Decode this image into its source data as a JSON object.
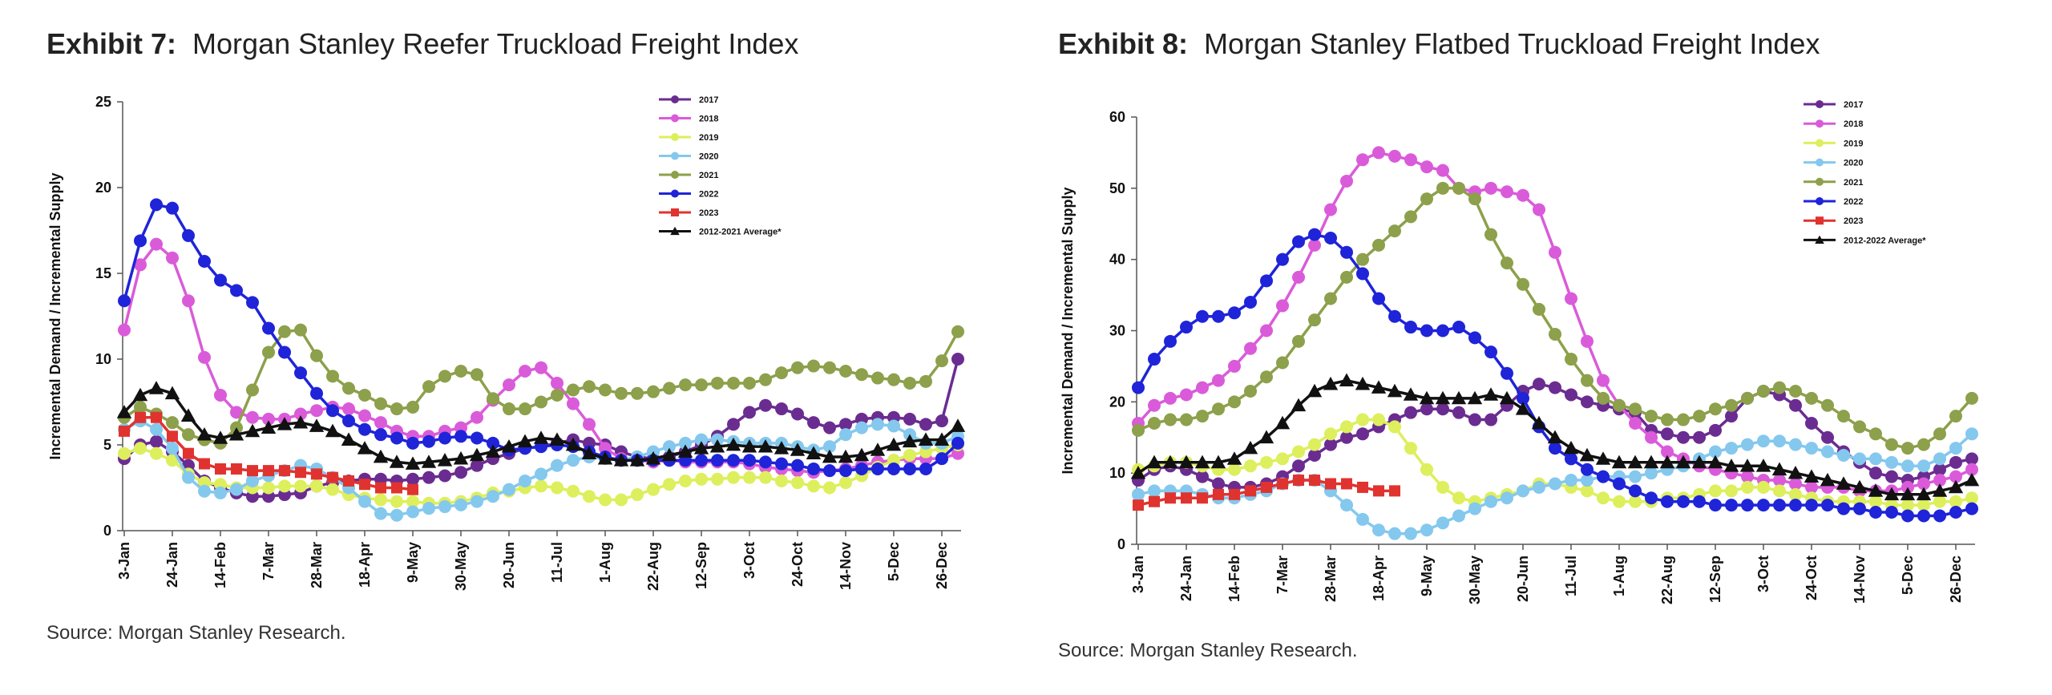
{
  "exhibits": [
    {
      "label": "Exhibit 7:",
      "title": "Morgan Stanley Reefer Truckload Freight Index",
      "source": "Source: Morgan Stanley Research."
    },
    {
      "label": "Exhibit 8:",
      "title": "Morgan Stanley Flatbed Truckload Freight Index",
      "source": "Source: Morgan Stanley Research."
    }
  ],
  "chart_data": [
    {
      "type": "line",
      "title": "Morgan Stanley Reefer Truckload Freight Index",
      "ylabel": "Incremental Demand / Incremental Supply",
      "xlabel": "",
      "ylim": [
        0,
        25
      ],
      "yticks": [
        0,
        5,
        10,
        15,
        20,
        25
      ],
      "xticks": [
        "3-Jan",
        "24-Jan",
        "14-Feb",
        "7-Mar",
        "28-Mar",
        "18-Apr",
        "9-May",
        "30-May",
        "20-Jun",
        "11-Jul",
        "1-Aug",
        "22-Aug",
        "12-Sep",
        "3-Oct",
        "24-Oct",
        "14-Nov",
        "5-Dec",
        "26-Dec"
      ],
      "grid": false,
      "legend_position": "top-right",
      "series": [
        {
          "name": "2017",
          "color": "#6B2C91",
          "marker": "circle",
          "values": [
            4.2,
            5.0,
            5.2,
            4.6,
            3.8,
            2.9,
            2.5,
            2.2,
            2.0,
            2.0,
            2.1,
            2.2,
            2.6,
            2.8,
            2.9,
            3.0,
            3.0,
            2.9,
            3.0,
            3.1,
            3.2,
            3.4,
            3.8,
            4.2,
            4.5,
            4.8,
            4.9,
            5.1,
            5.3,
            5.1,
            5.0,
            4.6,
            4.3,
            4.2,
            4.3,
            4.6,
            5.0,
            5.5,
            6.2,
            6.9,
            7.3,
            7.1,
            6.8,
            6.3,
            6.0,
            6.2,
            6.5,
            6.6,
            6.6,
            6.5,
            6.2,
            6.4,
            10.0
          ]
        },
        {
          "name": "2018",
          "color": "#DA5BD9",
          "marker": "circle",
          "values": [
            11.7,
            15.5,
            16.7,
            15.9,
            13.4,
            10.1,
            7.9,
            6.9,
            6.6,
            6.5,
            6.5,
            6.8,
            7.0,
            7.2,
            7.1,
            6.7,
            6.3,
            5.8,
            5.5,
            5.5,
            5.8,
            6.0,
            6.6,
            7.6,
            8.5,
            9.3,
            9.5,
            8.6,
            7.4,
            6.2,
            4.8,
            4.2,
            4.1,
            4.0,
            4.1,
            4.0,
            4.0,
            4.0,
            4.0,
            3.9,
            3.7,
            3.6,
            3.5,
            3.4,
            3.5,
            3.6,
            3.8,
            4.0,
            4.1,
            4.2,
            4.2,
            4.2,
            4.5
          ]
        },
        {
          "name": "2019",
          "color": "#DDEF5C",
          "marker": "circle",
          "values": [
            4.5,
            4.8,
            4.5,
            4.1,
            3.3,
            2.8,
            2.7,
            2.5,
            2.5,
            2.5,
            2.6,
            2.6,
            2.6,
            2.4,
            2.1,
            1.9,
            1.8,
            1.7,
            1.7,
            1.6,
            1.6,
            1.7,
            1.9,
            2.2,
            2.3,
            2.5,
            2.6,
            2.5,
            2.3,
            2.0,
            1.8,
            1.8,
            2.1,
            2.4,
            2.7,
            2.9,
            3.0,
            3.0,
            3.1,
            3.1,
            3.1,
            2.9,
            2.8,
            2.6,
            2.5,
            2.8,
            3.2,
            3.7,
            4.1,
            4.4,
            4.6,
            4.8,
            5.0
          ]
        },
        {
          "name": "2020",
          "color": "#84C8EE",
          "marker": "circle",
          "values": [
            5.9,
            6.4,
            5.9,
            4.8,
            3.1,
            2.3,
            2.2,
            2.4,
            2.9,
            3.2,
            3.5,
            3.8,
            3.6,
            3.1,
            2.5,
            1.7,
            1.0,
            0.9,
            1.1,
            1.3,
            1.4,
            1.5,
            1.7,
            2.0,
            2.4,
            2.9,
            3.3,
            3.8,
            4.1,
            4.3,
            4.2,
            4.1,
            4.3,
            4.6,
            4.9,
            5.1,
            5.3,
            5.3,
            5.2,
            5.1,
            5.1,
            5.1,
            4.9,
            4.7,
            4.9,
            5.6,
            6.0,
            6.2,
            6.1,
            5.6,
            5.1,
            5.1,
            5.5
          ]
        },
        {
          "name": "2021",
          "color": "#8DA04B",
          "marker": "circle",
          "values": [
            6.6,
            7.2,
            6.8,
            6.3,
            5.6,
            5.3,
            5.1,
            6.0,
            8.2,
            10.4,
            11.6,
            11.7,
            10.2,
            9.0,
            8.3,
            7.9,
            7.4,
            7.1,
            7.2,
            8.4,
            9.0,
            9.3,
            9.1,
            7.7,
            7.1,
            7.1,
            7.5,
            7.9,
            8.2,
            8.4,
            8.2,
            8.0,
            8.0,
            8.1,
            8.3,
            8.5,
            8.5,
            8.6,
            8.6,
            8.6,
            8.8,
            9.2,
            9.5,
            9.6,
            9.5,
            9.3,
            9.1,
            8.9,
            8.8,
            8.6,
            8.7,
            9.9,
            11.6
          ]
        },
        {
          "name": "2022",
          "color": "#1F24D8",
          "marker": "circle",
          "values": [
            13.4,
            16.9,
            19.0,
            18.8,
            17.2,
            15.7,
            14.6,
            14.0,
            13.3,
            11.8,
            10.4,
            9.2,
            8.0,
            7.0,
            6.4,
            5.9,
            5.6,
            5.4,
            5.1,
            5.2,
            5.4,
            5.5,
            5.4,
            5.1,
            4.7,
            4.8,
            4.9,
            5.0,
            4.9,
            4.6,
            4.3,
            4.1,
            4.1,
            4.1,
            4.1,
            4.1,
            4.1,
            4.1,
            4.1,
            4.1,
            4.0,
            3.9,
            3.8,
            3.6,
            3.5,
            3.5,
            3.6,
            3.6,
            3.6,
            3.6,
            3.6,
            4.2,
            5.1
          ]
        },
        {
          "name": "2023",
          "color": "#E0332F",
          "marker": "square",
          "values": [
            5.8,
            6.6,
            6.6,
            5.5,
            4.5,
            3.9,
            3.6,
            3.6,
            3.5,
            3.5,
            3.5,
            3.4,
            3.3,
            3.1,
            2.9,
            2.7,
            2.5,
            2.5,
            2.4
          ]
        },
        {
          "name": "2012-2021 Average*",
          "color": "#111111",
          "marker": "triangle",
          "values": [
            6.9,
            7.9,
            8.3,
            8.0,
            6.7,
            5.6,
            5.4,
            5.6,
            5.8,
            6.0,
            6.2,
            6.3,
            6.1,
            5.8,
            5.3,
            4.8,
            4.3,
            4.0,
            3.9,
            4.0,
            4.1,
            4.2,
            4.4,
            4.6,
            4.9,
            5.2,
            5.4,
            5.3,
            5.0,
            4.5,
            4.2,
            4.1,
            4.1,
            4.2,
            4.4,
            4.6,
            4.8,
            4.9,
            5.0,
            4.9,
            4.9,
            4.8,
            4.7,
            4.5,
            4.3,
            4.3,
            4.4,
            4.7,
            5.0,
            5.2,
            5.3,
            5.3,
            6.1
          ]
        }
      ]
    },
    {
      "type": "line",
      "title": "Morgan Stanley Flatbed Truckload Freight Index",
      "ylabel": "Incremental Demand / Incremental Supply",
      "xlabel": "",
      "ylim": [
        0,
        60
      ],
      "yticks": [
        0,
        10,
        20,
        30,
        40,
        50,
        60
      ],
      "xticks": [
        "3-Jan",
        "24-Jan",
        "14-Feb",
        "7-Mar",
        "28-Mar",
        "18-Apr",
        "9-May",
        "30-May",
        "20-Jun",
        "11-Jul",
        "1-Aug",
        "22-Aug",
        "12-Sep",
        "3-Oct",
        "24-Oct",
        "14-Nov",
        "5-Dec",
        "26-Dec"
      ],
      "grid": false,
      "legend_position": "top-right",
      "series": [
        {
          "name": "2017",
          "color": "#6B2C91",
          "marker": "circle",
          "values": [
            9.0,
            10.5,
            11.0,
            10.5,
            9.5,
            8.5,
            8.0,
            8.0,
            8.5,
            9.5,
            11.0,
            12.5,
            14.0,
            15.0,
            15.5,
            16.5,
            17.5,
            18.5,
            19.0,
            19.0,
            18.5,
            17.5,
            17.5,
            19.5,
            21.5,
            22.5,
            22.0,
            21.0,
            20.0,
            19.5,
            19.0,
            18.5,
            16.0,
            15.5,
            15.0,
            15.0,
            16.0,
            18.0,
            20.5,
            21.5,
            21.0,
            19.5,
            17.0,
            15.0,
            13.0,
            11.5,
            10.0,
            9.5,
            9.0,
            9.5,
            10.5,
            11.5,
            12.0
          ]
        },
        {
          "name": "2018",
          "color": "#DA5BD9",
          "marker": "circle",
          "values": [
            17.0,
            19.5,
            20.5,
            21.0,
            22.0,
            23.0,
            25.0,
            27.5,
            30.0,
            33.5,
            37.5,
            42.0,
            47.0,
            51.0,
            54.0,
            55.0,
            54.5,
            54.0,
            53.0,
            52.5,
            50.0,
            49.5,
            50.0,
            49.5,
            49.0,
            47.0,
            41.0,
            34.5,
            28.5,
            23.0,
            19.5,
            17.0,
            15.0,
            13.0,
            12.0,
            11.0,
            10.5,
            10.0,
            9.5,
            9.0,
            9.0,
            8.5,
            8.0,
            8.0,
            8.0,
            7.5,
            7.5,
            7.5,
            8.0,
            8.5,
            9.0,
            9.5,
            10.5
          ]
        },
        {
          "name": "2019",
          "color": "#DDEF5C",
          "marker": "circle",
          "values": [
            10.5,
            11.0,
            11.5,
            11.5,
            11.0,
            10.5,
            10.5,
            11.0,
            11.5,
            12.0,
            13.0,
            14.0,
            15.5,
            16.5,
            17.5,
            17.5,
            16.5,
            13.5,
            10.5,
            8.0,
            6.5,
            6.0,
            6.5,
            7.0,
            7.5,
            8.5,
            8.5,
            8.0,
            7.5,
            6.5,
            6.0,
            6.0,
            6.0,
            6.5,
            6.5,
            7.0,
            7.5,
            7.5,
            8.0,
            8.0,
            7.5,
            7.0,
            6.5,
            6.0,
            6.0,
            6.0,
            6.0,
            5.5,
            5.5,
            5.5,
            6.0,
            6.0,
            6.5
          ]
        },
        {
          "name": "2020",
          "color": "#84C8EE",
          "marker": "circle",
          "values": [
            7.0,
            7.5,
            7.5,
            7.5,
            7.0,
            6.5,
            6.5,
            7.0,
            7.5,
            8.5,
            9.0,
            9.0,
            7.5,
            5.5,
            3.5,
            2.0,
            1.5,
            1.5,
            2.0,
            3.0,
            4.0,
            5.0,
            6.0,
            6.5,
            7.5,
            8.0,
            8.5,
            9.0,
            9.0,
            9.5,
            9.5,
            9.5,
            10.0,
            10.5,
            11.0,
            12.0,
            13.0,
            13.5,
            14.0,
            14.5,
            14.5,
            14.0,
            13.5,
            13.0,
            12.5,
            12.0,
            12.0,
            11.5,
            11.0,
            11.0,
            12.0,
            13.5,
            15.5
          ]
        },
        {
          "name": "2021",
          "color": "#8DA04B",
          "marker": "circle",
          "values": [
            16.0,
            17.0,
            17.5,
            17.5,
            18.0,
            19.0,
            20.0,
            21.5,
            23.5,
            25.5,
            28.5,
            31.5,
            34.5,
            37.5,
            40.0,
            42.0,
            44.0,
            46.0,
            48.5,
            50.0,
            50.0,
            48.5,
            43.5,
            39.5,
            36.5,
            33.0,
            29.5,
            26.0,
            23.0,
            20.5,
            19.5,
            19.0,
            18.0,
            17.5,
            17.5,
            18.0,
            19.0,
            19.5,
            20.5,
            21.5,
            22.0,
            21.5,
            20.5,
            19.5,
            18.0,
            16.5,
            15.5,
            14.0,
            13.5,
            14.0,
            15.5,
            18.0,
            20.5
          ]
        },
        {
          "name": "2022",
          "color": "#1F24D8",
          "marker": "circle",
          "values": [
            22.0,
            26.0,
            28.5,
            30.5,
            32.0,
            32.0,
            32.5,
            34.0,
            37.0,
            40.0,
            42.5,
            43.5,
            43.0,
            41.0,
            38.0,
            34.5,
            32.0,
            30.5,
            30.0,
            30.0,
            30.5,
            29.0,
            27.0,
            24.0,
            20.5,
            16.5,
            13.5,
            12.0,
            10.5,
            9.5,
            8.5,
            7.5,
            6.5,
            6.0,
            6.0,
            6.0,
            5.5,
            5.5,
            5.5,
            5.5,
            5.5,
            5.5,
            5.5,
            5.5,
            5.0,
            5.0,
            4.5,
            4.5,
            4.0,
            4.0,
            4.0,
            4.5,
            5.0
          ]
        },
        {
          "name": "2023",
          "color": "#E0332F",
          "marker": "square",
          "values": [
            5.5,
            6.0,
            6.5,
            6.5,
            6.5,
            7.0,
            7.0,
            7.5,
            8.0,
            8.5,
            9.0,
            9.0,
            8.5,
            8.5,
            8.0,
            7.5,
            7.5
          ]
        },
        {
          "name": "2012-2022 Average*",
          "color": "#111111",
          "marker": "triangle",
          "values": [
            10.0,
            11.5,
            11.5,
            11.5,
            11.5,
            11.5,
            12.0,
            13.5,
            15.0,
            17.0,
            19.5,
            21.5,
            22.5,
            23.0,
            22.5,
            22.0,
            21.5,
            21.0,
            20.5,
            20.5,
            20.5,
            20.5,
            21.0,
            20.5,
            19.0,
            17.0,
            15.0,
            13.5,
            12.5,
            12.0,
            11.5,
            11.5,
            11.5,
            11.5,
            11.5,
            11.5,
            11.5,
            11.0,
            11.0,
            11.0,
            10.5,
            10.0,
            9.5,
            9.0,
            8.5,
            8.0,
            7.5,
            7.0,
            7.0,
            7.0,
            7.5,
            8.0,
            9.0
          ]
        }
      ]
    }
  ]
}
